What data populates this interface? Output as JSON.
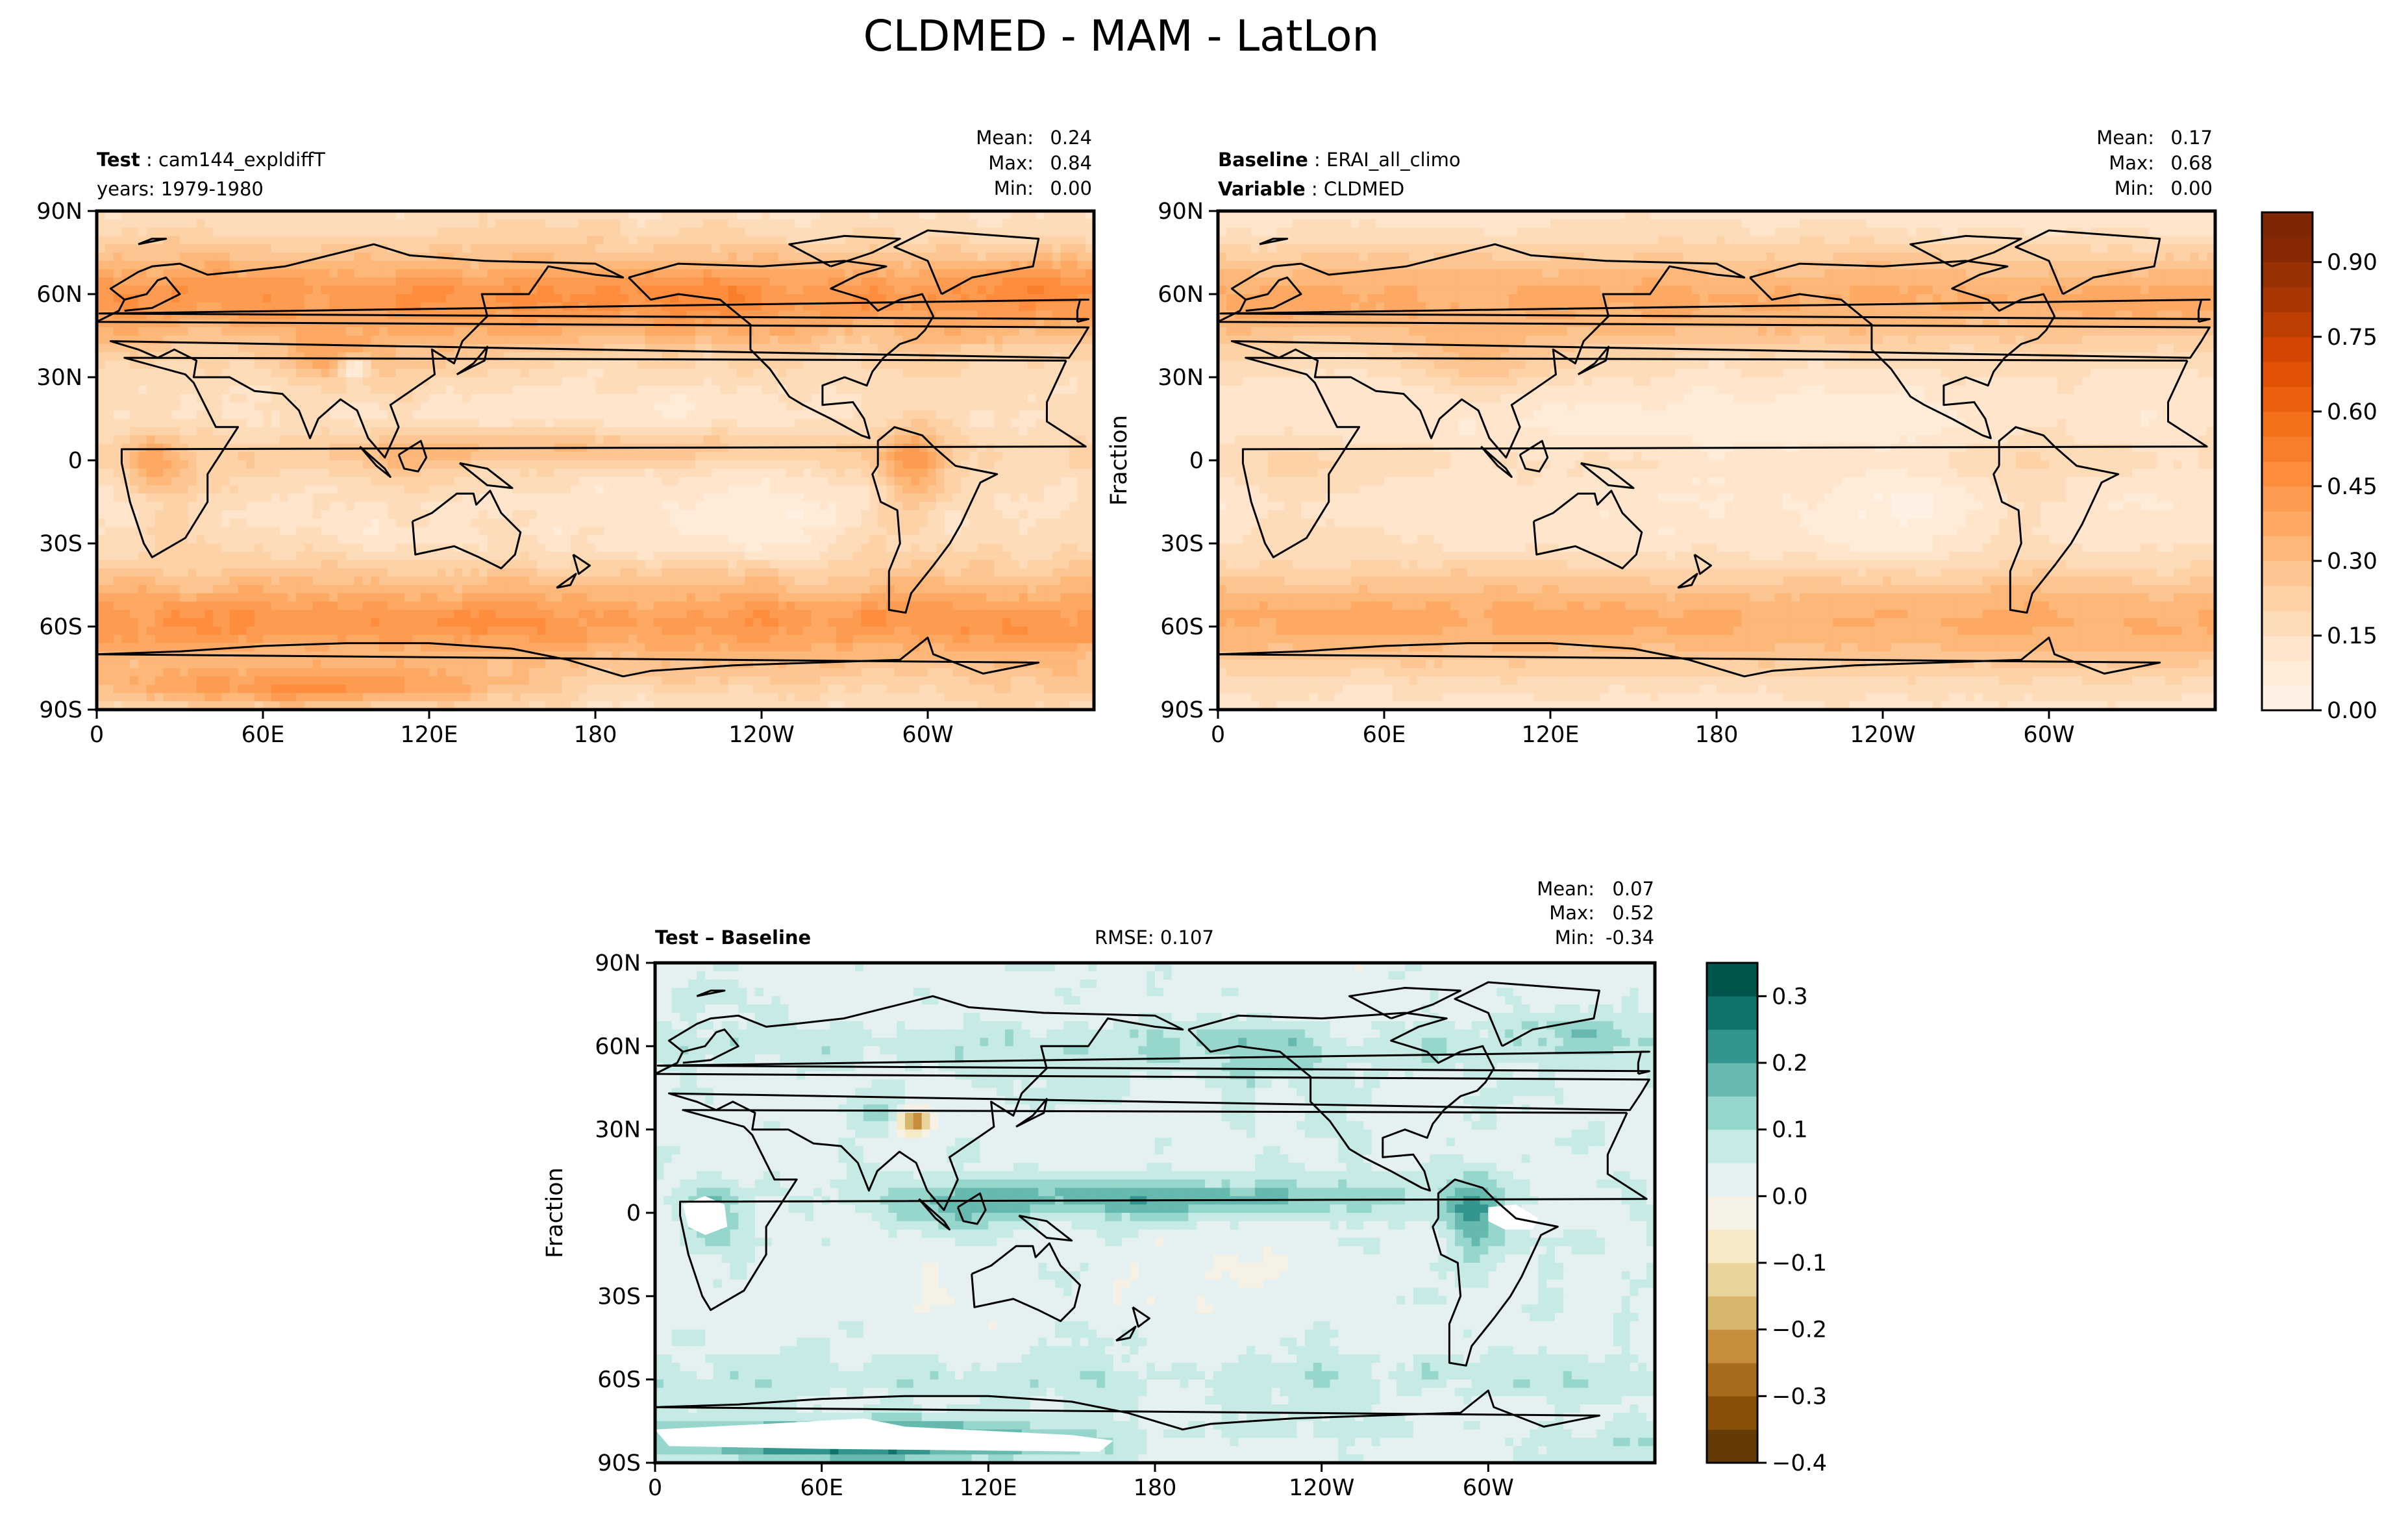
{
  "figure": {
    "title": "CLDMED - MAM - LatLon"
  },
  "panels": [
    {
      "id": "test",
      "header": {
        "label": "Test",
        "value": "cam144_expldiffT",
        "line2": "years: 1979-1980"
      },
      "stats": {
        "mean": "0.24",
        "max": "0.84",
        "min": "0.00"
      },
      "ylabel": "",
      "field": "test",
      "colormap": "oranges"
    },
    {
      "id": "baseline",
      "header": {
        "label": "Baseline",
        "value": "ERAI_all_climo",
        "label2": "Variable",
        "value2": "CLDMED"
      },
      "stats": {
        "mean": "0.17",
        "max": "0.68",
        "min": "0.00"
      },
      "ylabel": "Fraction",
      "field": "baseline",
      "colormap": "oranges"
    },
    {
      "id": "diff",
      "header": {
        "label": "Test – Baseline",
        "rmse": "RMSE: 0.107"
      },
      "stats": {
        "mean": "0.07",
        "max": "0.52",
        "min": "-0.34"
      },
      "ylabel": "Fraction",
      "field": "diff",
      "colormap": "brbg"
    }
  ],
  "stat_labels": {
    "mean": "Mean:",
    "max": "Max:",
    "min": "Min:"
  },
  "axes": {
    "xticks": [
      "0",
      "60E",
      "120E",
      "180",
      "120W",
      "60W"
    ],
    "xtick_lon": [
      0,
      60,
      120,
      180,
      240,
      300
    ],
    "yticks": [
      "90N",
      "60N",
      "30N",
      "0",
      "30S",
      "60S",
      "90S"
    ],
    "ytick_lat": [
      90,
      60,
      30,
      0,
      -30,
      -60,
      -90
    ],
    "xlim": [
      0,
      360
    ],
    "ylim": [
      -90,
      90
    ]
  },
  "colorbars": [
    {
      "id": "cb-main",
      "ticks": [
        "0.00",
        "0.15",
        "0.30",
        "0.45",
        "0.60",
        "0.75",
        "0.90"
      ],
      "tick_values": [
        0,
        0.15,
        0.3,
        0.45,
        0.6,
        0.75,
        0.9
      ],
      "range": [
        0,
        1.0
      ],
      "levels": 20
    },
    {
      "id": "cb-diff",
      "ticks": [
        "−0.4",
        "−0.3",
        "−0.2",
        "−0.1",
        "0.0",
        "0.1",
        "0.2",
        "0.3"
      ],
      "tick_values": [
        -0.4,
        -0.3,
        -0.2,
        -0.1,
        0.0,
        0.1,
        0.2,
        0.3
      ],
      "range": [
        -0.4,
        0.35
      ],
      "levels": 15
    }
  ],
  "colors": {
    "oranges": [
      "#fff5eb",
      "#fee6ce",
      "#fdd0a2",
      "#fdae6b",
      "#fd8d3c",
      "#f16913",
      "#d94801",
      "#a63603",
      "#7f2704"
    ],
    "brbg_neg": [
      "#543005",
      "#8c510a",
      "#bf812d",
      "#dfc27d",
      "#f6e8c3",
      "#f5f5f5"
    ],
    "brbg_pos": [
      "#f5f5f5",
      "#c7eae5",
      "#80cdc1",
      "#35978f",
      "#01665e",
      "#003c30"
    ]
  },
  "chart_data": {
    "type": "heatmap",
    "title": "CLDMED - MAM - LatLon",
    "x_axis": {
      "ticks": [
        "0",
        "60E",
        "120E",
        "180",
        "120W",
        "60W"
      ],
      "range": [
        0,
        360
      ]
    },
    "y_axis": {
      "ticks": [
        "90N",
        "60N",
        "30N",
        "0",
        "30S",
        "60S",
        "90S"
      ],
      "range": [
        -90,
        90
      ]
    },
    "panels": [
      {
        "name": "Test",
        "case": "cam144_expldiffT",
        "years": "1979-1980",
        "mean": 0.24,
        "max": 0.84,
        "min": 0.0
      },
      {
        "name": "Baseline",
        "case": "ERAI_all_climo",
        "variable": "CLDMED",
        "mean": 0.17,
        "max": 0.68,
        "min": 0.0
      },
      {
        "name": "Test – Baseline",
        "rmse": 0.107,
        "mean": 0.07,
        "max": 0.52,
        "min": -0.34
      }
    ],
    "colorbar_label": "Fraction"
  }
}
